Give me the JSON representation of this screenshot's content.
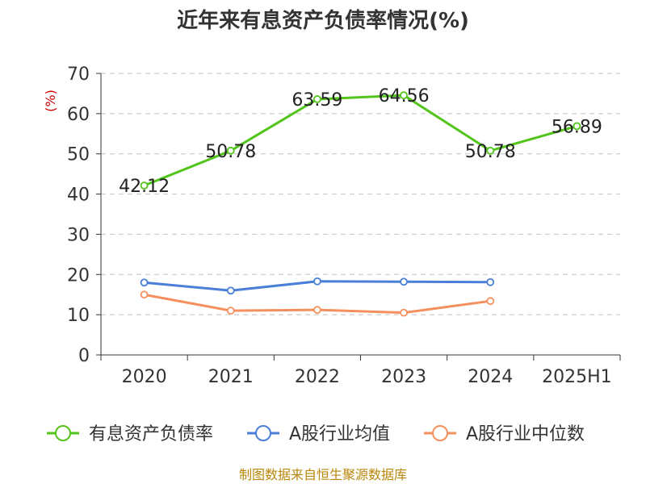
{
  "colors": {
    "green": "#52c41a",
    "blue": "#4a7fd9",
    "orange": "#f5905e",
    "ylabel": "#cc0000",
    "source": "#b8860b",
    "grid": "#cccccc",
    "axis": "#333333"
  },
  "chart_data": {
    "type": "line",
    "title": "近年来有息资产负债率情况(%)",
    "ylabel": "(%)",
    "xlabel": "",
    "categories": [
      "2020",
      "2021",
      "2022",
      "2023",
      "2024",
      "2025H1"
    ],
    "ylim": [
      0,
      70
    ],
    "yticks": [
      0,
      10,
      20,
      30,
      40,
      50,
      60,
      70
    ],
    "grid": true,
    "legend_position": "bottom",
    "series": [
      {
        "name": "有息资产负债率",
        "color_key": "green",
        "values": [
          42.12,
          50.78,
          63.59,
          64.56,
          50.78,
          56.89
        ],
        "labels": [
          "42.12",
          "50.78",
          "63.59",
          "64.56",
          "50.78",
          "56.89"
        ]
      },
      {
        "name": "A股行业均值",
        "color_key": "blue",
        "values": [
          18.0,
          16.0,
          18.3,
          18.2,
          18.1,
          null
        ],
        "labels": []
      },
      {
        "name": "A股行业中位数",
        "color_key": "orange",
        "values": [
          15.0,
          11.0,
          11.2,
          10.5,
          13.4,
          null
        ],
        "labels": []
      }
    ]
  },
  "source": "制图数据来自恒生聚源数据库"
}
